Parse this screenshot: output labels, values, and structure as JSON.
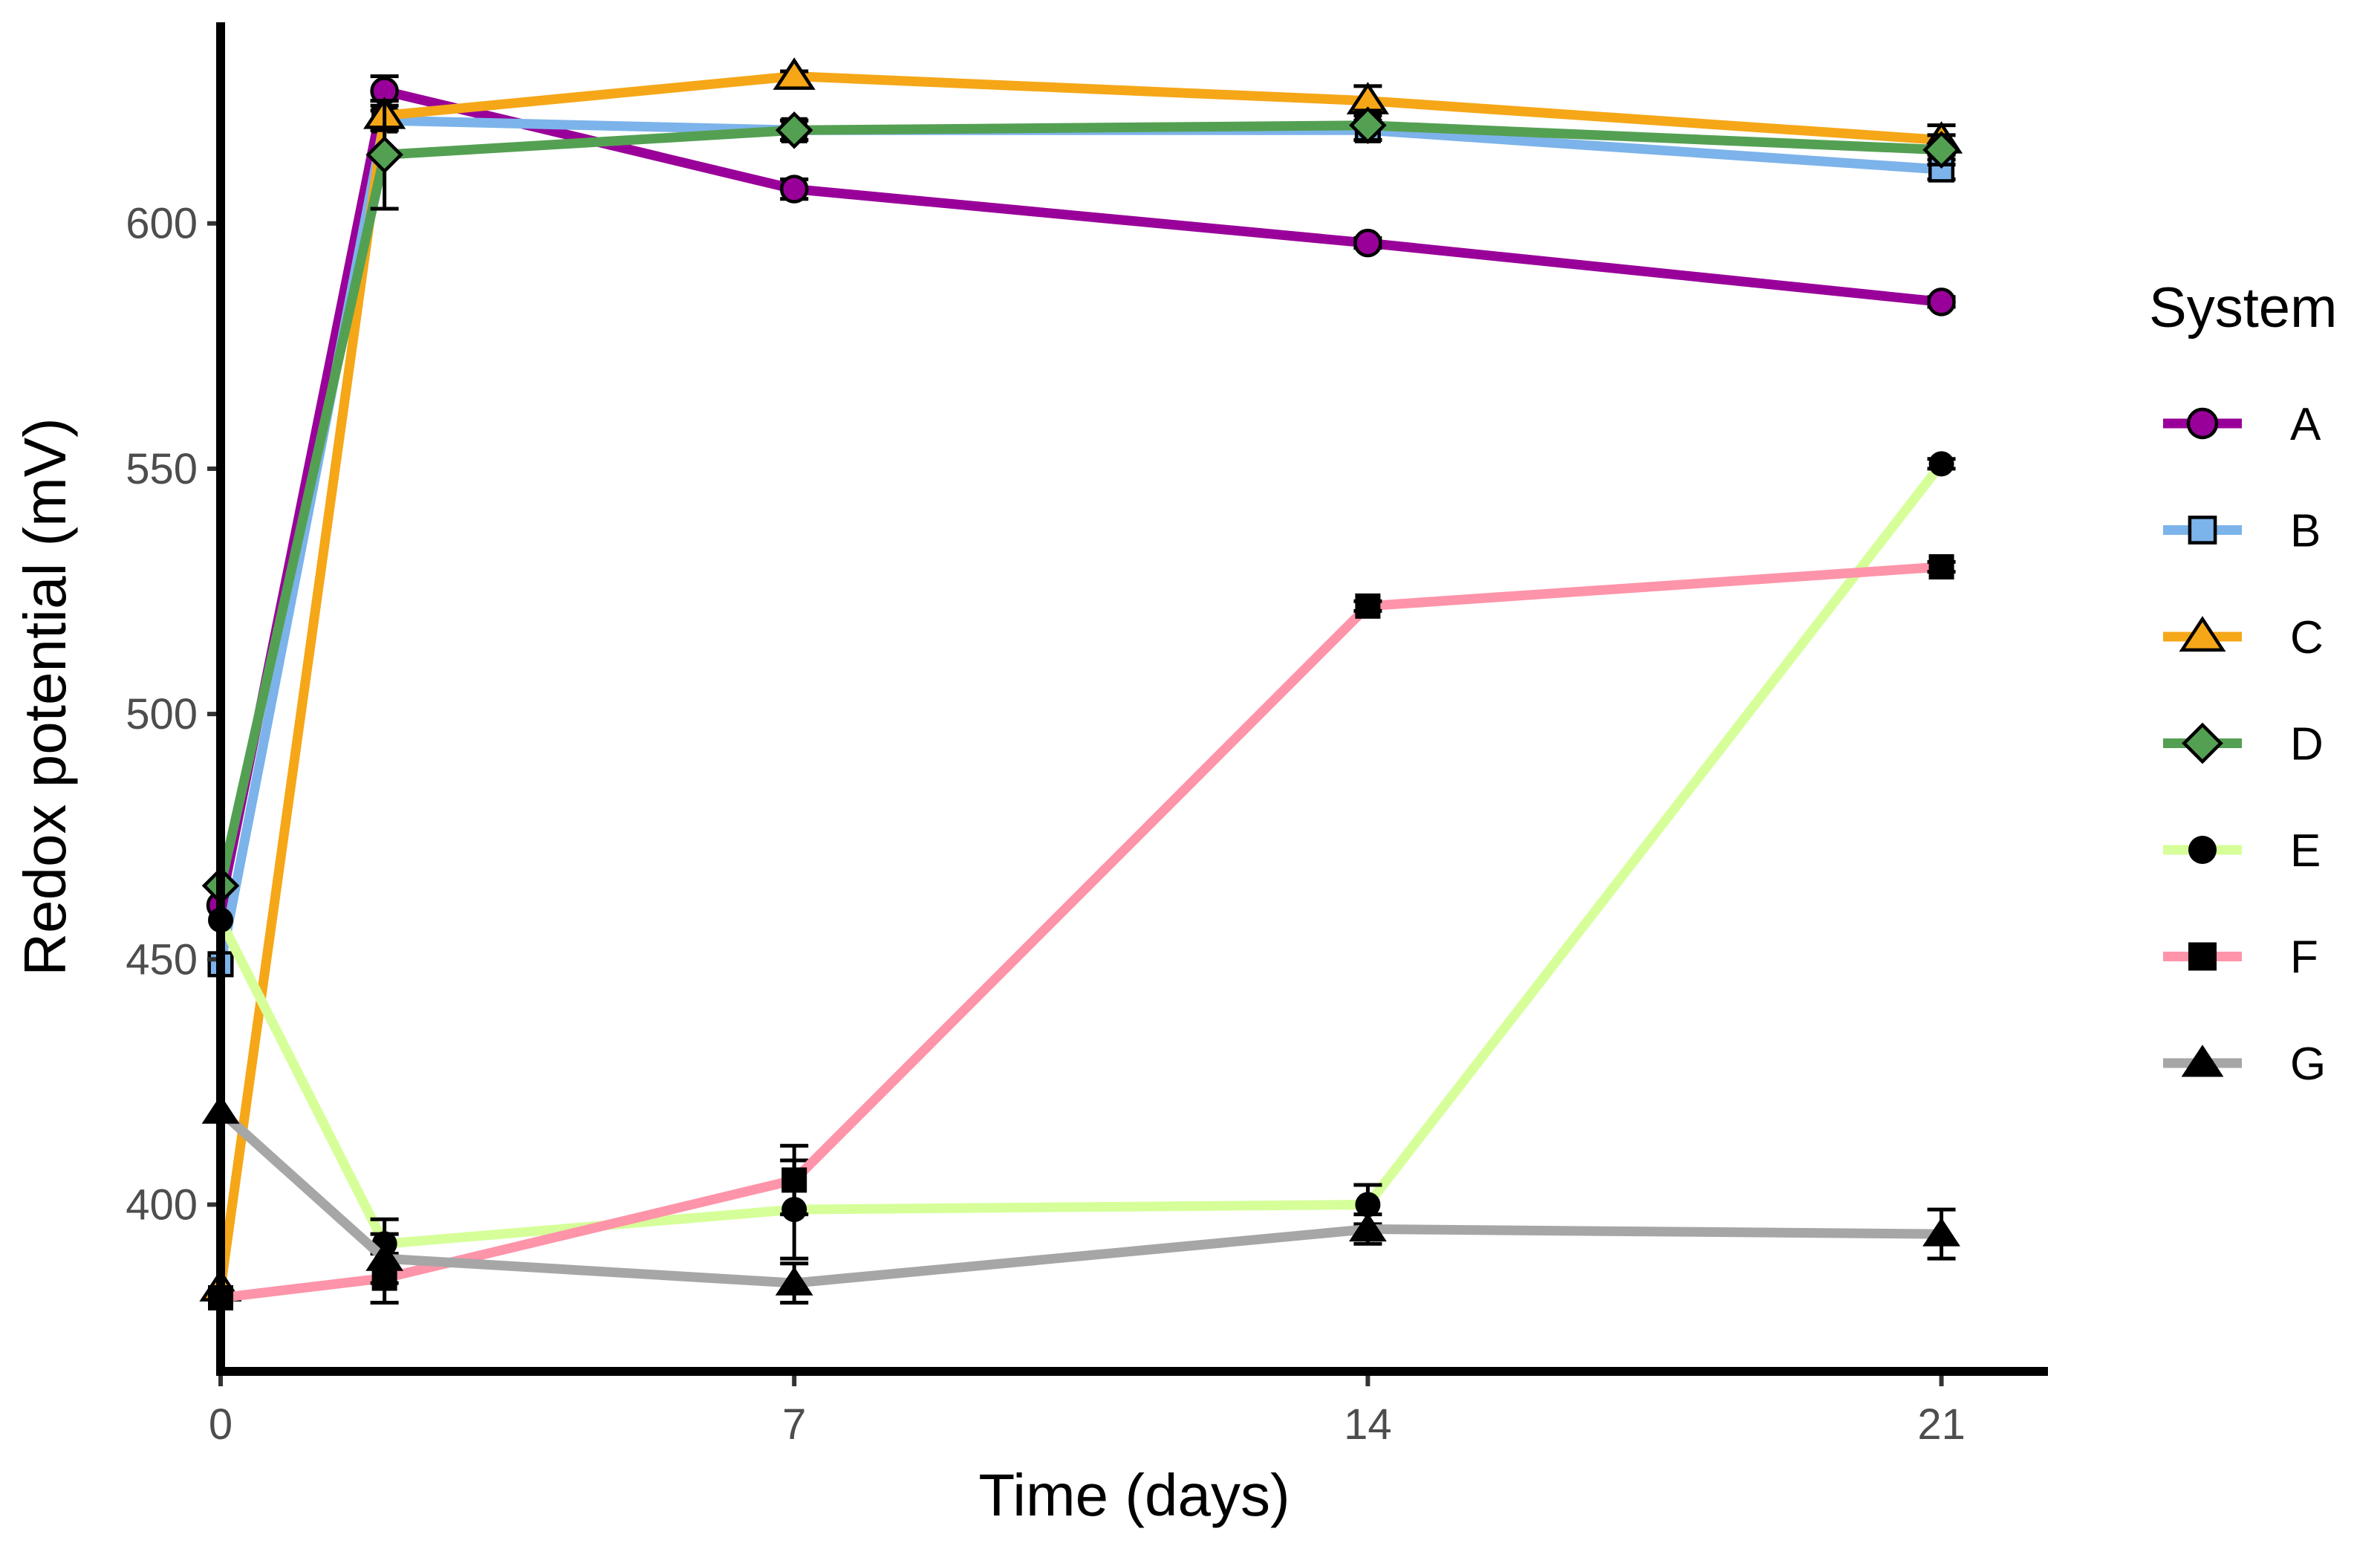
{
  "chart_data": {
    "type": "line",
    "xlabel": "Time (days)",
    "ylabel": "Redox potential (mV)",
    "xlim": [
      0,
      22.3
    ],
    "ylim": [
      366,
      641
    ],
    "x_ticks": [
      0,
      7,
      14,
      21
    ],
    "y_ticks": [
      400,
      450,
      500,
      550,
      600
    ],
    "legend_title": "System",
    "legend_position": "right",
    "grid": false,
    "series": [
      {
        "name": "A",
        "color": "#990099",
        "marker": "circle",
        "points": [
          {
            "x": 0,
            "y": 461,
            "err": 0
          },
          {
            "x": 2,
            "y": 627,
            "err": 3
          },
          {
            "x": 7,
            "y": 607,
            "err": 2
          },
          {
            "x": 14,
            "y": 596,
            "err": 1
          },
          {
            "x": 21,
            "y": 584,
            "err": 1
          }
        ]
      },
      {
        "name": "B",
        "color": "#7cb3ea",
        "marker": "square",
        "points": [
          {
            "x": 0,
            "y": 449,
            "err": 0
          },
          {
            "x": 2,
            "y": 621,
            "err": 2
          },
          {
            "x": 7,
            "y": 619,
            "err": 2
          },
          {
            "x": 14,
            "y": 619,
            "err": 2
          },
          {
            "x": 21,
            "y": 611,
            "err": 2
          }
        ]
      },
      {
        "name": "C",
        "color": "#f5a718",
        "marker": "triangle-open",
        "points": [
          {
            "x": 0,
            "y": 383,
            "err": 0
          },
          {
            "x": 2,
            "y": 622,
            "err": 3
          },
          {
            "x": 7,
            "y": 630,
            "err": 1
          },
          {
            "x": 14,
            "y": 625,
            "err": 3
          },
          {
            "x": 21,
            "y": 617,
            "err": 3
          }
        ]
      },
      {
        "name": "D",
        "color": "#54a053",
        "marker": "diamond",
        "points": [
          {
            "x": 0,
            "y": 465,
            "err": 0
          },
          {
            "x": 2,
            "y": 614,
            "err": 11
          },
          {
            "x": 7,
            "y": 619,
            "err": 2
          },
          {
            "x": 14,
            "y": 620,
            "err": 3
          },
          {
            "x": 21,
            "y": 615,
            "err": 3
          }
        ]
      },
      {
        "name": "E",
        "color": "#d6ff99",
        "marker": "filled-circle",
        "points": [
          {
            "x": 0,
            "y": 458,
            "err": 0
          },
          {
            "x": 2,
            "y": 392,
            "err": 5
          },
          {
            "x": 7,
            "y": 399,
            "err": 10
          },
          {
            "x": 14,
            "y": 400,
            "err": 4
          },
          {
            "x": 21,
            "y": 551,
            "err": 1
          }
        ]
      },
      {
        "name": "F",
        "color": "#fe94a9",
        "marker": "filled-square",
        "points": [
          {
            "x": 0,
            "y": 381,
            "err": 0
          },
          {
            "x": 2,
            "y": 385,
            "err": 5
          },
          {
            "x": 7,
            "y": 405,
            "err": 7
          },
          {
            "x": 14,
            "y": 522,
            "err": 1
          },
          {
            "x": 21,
            "y": 530,
            "err": 1
          }
        ]
      },
      {
        "name": "G",
        "color": "#a6a6a6",
        "marker": "filled-triangle",
        "points": [
          {
            "x": 0,
            "y": 419,
            "err": 0
          },
          {
            "x": 2,
            "y": 389,
            "err": 5
          },
          {
            "x": 7,
            "y": 384,
            "err": 4
          },
          {
            "x": 14,
            "y": 395,
            "err": 3
          },
          {
            "x": 21,
            "y": 394,
            "err": 5
          }
        ]
      }
    ]
  }
}
